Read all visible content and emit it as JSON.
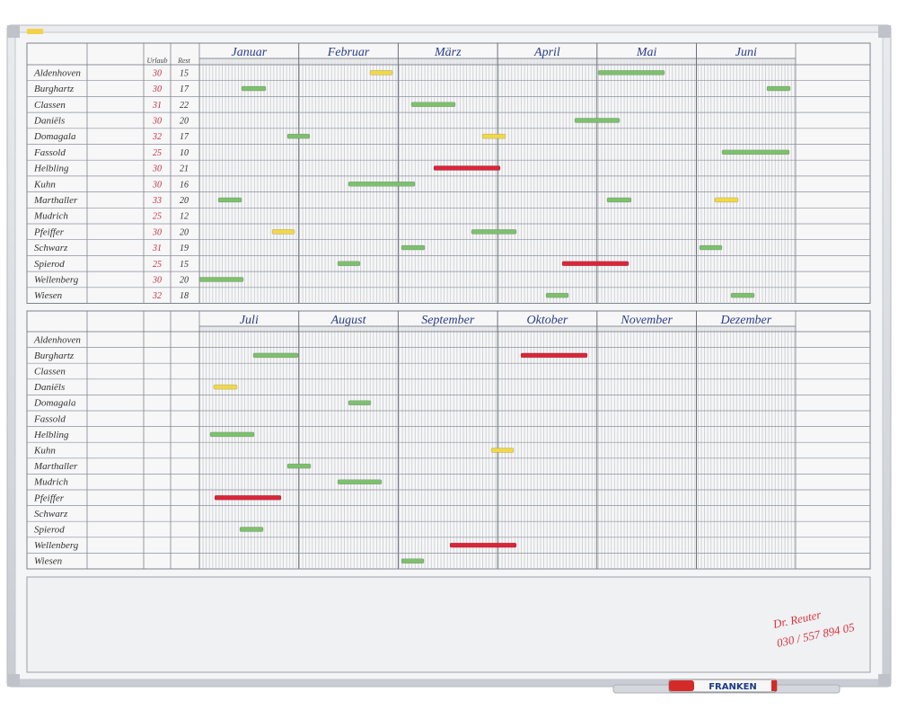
{
  "board": {
    "column_headers": {
      "vacation": "Urlaub",
      "remaining": "Rest"
    },
    "months_top": [
      "Januar",
      "Februar",
      "März",
      "April",
      "Mai",
      "Juni"
    ],
    "months_bottom": [
      "Juli",
      "August",
      "September",
      "Oktober",
      "November",
      "Dezember"
    ],
    "employees": [
      {
        "name": "Aldenhoven",
        "vacation": 30,
        "remaining": 15
      },
      {
        "name": "Burghartz",
        "vacation": 30,
        "remaining": 17
      },
      {
        "name": "Classen",
        "vacation": 31,
        "remaining": 22
      },
      {
        "name": "Daniëls",
        "vacation": 30,
        "remaining": 20
      },
      {
        "name": "Domagala",
        "vacation": 32,
        "remaining": 17
      },
      {
        "name": "Fassold",
        "vacation": 25,
        "remaining": 10
      },
      {
        "name": "Helbling",
        "vacation": 30,
        "remaining": 21
      },
      {
        "name": "Kuhn",
        "vacation": 30,
        "remaining": 16
      },
      {
        "name": "Marthaller",
        "vacation": 33,
        "remaining": 20
      },
      {
        "name": "Mudrich",
        "vacation": 25,
        "remaining": 12
      },
      {
        "name": "Pfeiffer",
        "vacation": 30,
        "remaining": 20
      },
      {
        "name": "Schwarz",
        "vacation": 31,
        "remaining": 19
      },
      {
        "name": "Spierod",
        "vacation": 25,
        "remaining": 15
      },
      {
        "name": "Wellenberg",
        "vacation": 30,
        "remaining": 20
      },
      {
        "name": "Wiesen",
        "vacation": 32,
        "remaining": 18
      }
    ],
    "note": {
      "name": "Dr. Reuter",
      "phone": "030 / 557 894 05"
    },
    "marker_brand": "FRANKEN"
  }
}
